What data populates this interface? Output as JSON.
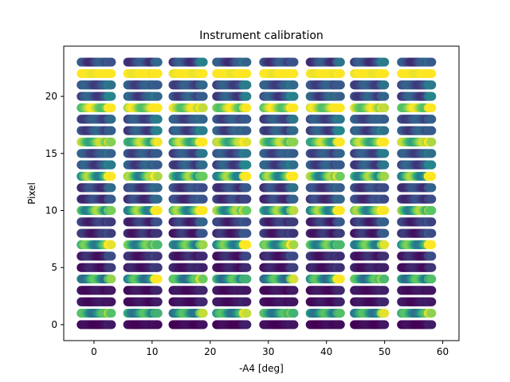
{
  "chart_data": {
    "type": "scatter",
    "title": "Instrument calibration",
    "xlabel": "-A4 [deg]",
    "ylabel": "Pixel",
    "xlim": [
      -5.2,
      62.8
    ],
    "ylim": [
      -1.4,
      24.4
    ],
    "xticks": [
      0,
      10,
      20,
      30,
      40,
      50,
      60
    ],
    "yticks": [
      0,
      5,
      10,
      15,
      20
    ],
    "grid": false,
    "colormap": "viridis",
    "group_centers": [
      0,
      7.8,
      15.6,
      23.4,
      31.2,
      39.0,
      46.8,
      54.6
    ],
    "group_halfwidth": 2.6,
    "group_offsets_x": [
      0.4,
      0.6,
      0.6,
      0.3,
      0.6,
      0.8,
      0.6,
      0.9
    ],
    "x_step": 0.2,
    "pixels": [
      0,
      1,
      2,
      3,
      4,
      5,
      6,
      7,
      8,
      9,
      10,
      11,
      12,
      13,
      14,
      15,
      16,
      17,
      18,
      19,
      20,
      21,
      22,
      23
    ],
    "row_intensity": [
      0.02,
      0.55,
      0.05,
      0.05,
      0.55,
      0.08,
      0.1,
      0.6,
      0.12,
      0.15,
      0.65,
      0.18,
      0.2,
      0.65,
      0.25,
      0.25,
      0.75,
      0.25,
      0.25,
      0.85,
      0.25,
      0.25,
      1.0,
      0.22
    ],
    "row_variation": [
      0.05,
      0.3,
      0.05,
      0.05,
      0.35,
      0.08,
      0.1,
      0.35,
      0.12,
      0.12,
      0.4,
      0.12,
      0.12,
      0.4,
      0.15,
      0.12,
      0.3,
      0.15,
      0.12,
      0.25,
      0.15,
      0.12,
      0.05,
      0.15
    ]
  }
}
